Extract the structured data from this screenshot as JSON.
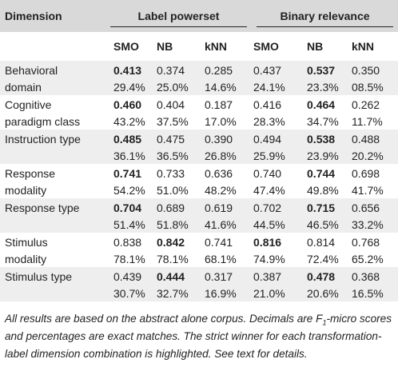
{
  "table": {
    "dimension_header": "Dimension",
    "groups": [
      "Label powerset",
      "Binary relevance"
    ],
    "columns": [
      "SMO",
      "NB",
      "kNN",
      "SMO",
      "NB",
      "kNN"
    ],
    "rows": [
      {
        "dim_line1": "Behavioral",
        "dim_line2": "domain",
        "scores": [
          "0.413",
          "0.374",
          "0.285",
          "0.437",
          "0.537",
          "0.350"
        ],
        "bold": [
          true,
          false,
          false,
          false,
          true,
          false
        ],
        "pcts": [
          "29.4%",
          "25.0%",
          "14.6%",
          "24.1%",
          "23.3%",
          "08.5%"
        ]
      },
      {
        "dim_line1": "Cognitive",
        "dim_line2": "paradigm class",
        "scores": [
          "0.460",
          "0.404",
          "0.187",
          "0.416",
          "0.464",
          "0.262"
        ],
        "bold": [
          true,
          false,
          false,
          false,
          true,
          false
        ],
        "pcts": [
          "43.2%",
          "37.5%",
          "17.0%",
          "28.3%",
          "34.7%",
          "11.7%"
        ]
      },
      {
        "dim_line1": "Instruction type",
        "dim_line2": "",
        "scores": [
          "0.485",
          "0.475",
          "0.390",
          "0.494",
          "0.538",
          "0.488"
        ],
        "bold": [
          true,
          false,
          false,
          false,
          true,
          false
        ],
        "pcts": [
          "36.1%",
          "36.5%",
          "26.8%",
          "25.9%",
          "23.9%",
          "20.2%"
        ]
      },
      {
        "dim_line1": "Response",
        "dim_line2": "modality",
        "scores": [
          "0.741",
          "0.733",
          "0.636",
          "0.740",
          "0.744",
          "0.698"
        ],
        "bold": [
          true,
          false,
          false,
          false,
          true,
          false
        ],
        "pcts": [
          "54.2%",
          "51.0%",
          "48.2%",
          "47.4%",
          "49.8%",
          "41.7%"
        ]
      },
      {
        "dim_line1": "Response type",
        "dim_line2": "",
        "scores": [
          "0.704",
          "0.689",
          "0.619",
          "0.702",
          "0.715",
          "0.656"
        ],
        "bold": [
          true,
          false,
          false,
          false,
          true,
          false
        ],
        "pcts": [
          "51.4%",
          "51.8%",
          "41.6%",
          "44.5%",
          "46.5%",
          "33.2%"
        ]
      },
      {
        "dim_line1": "Stimulus",
        "dim_line2": "modality",
        "scores": [
          "0.838",
          "0.842",
          "0.741",
          "0.816",
          "0.814",
          "0.768"
        ],
        "bold": [
          false,
          true,
          false,
          true,
          false,
          false
        ],
        "pcts": [
          "78.1%",
          "78.1%",
          "68.1%",
          "74.9%",
          "72.4%",
          "65.2%"
        ]
      },
      {
        "dim_line1": "Stimulus type",
        "dim_line2": "",
        "scores": [
          "0.439",
          "0.444",
          "0.317",
          "0.387",
          "0.478",
          "0.368"
        ],
        "bold": [
          false,
          true,
          false,
          false,
          true,
          false
        ],
        "pcts": [
          "30.7%",
          "32.7%",
          "16.9%",
          "21.0%",
          "20.6%",
          "16.5%"
        ]
      }
    ]
  },
  "caption": {
    "part1": "All results are based on the abstract alone corpus. Decimals are F",
    "sub": "1",
    "part2": "-micro scores and percentages are exact matches. The strict winner for each transformation-label dimension combination is highlighted. See text for details."
  },
  "colors": {
    "header_bg": "#d9d9d9",
    "band_bg": "#eeeeee",
    "text": "#231f20"
  }
}
